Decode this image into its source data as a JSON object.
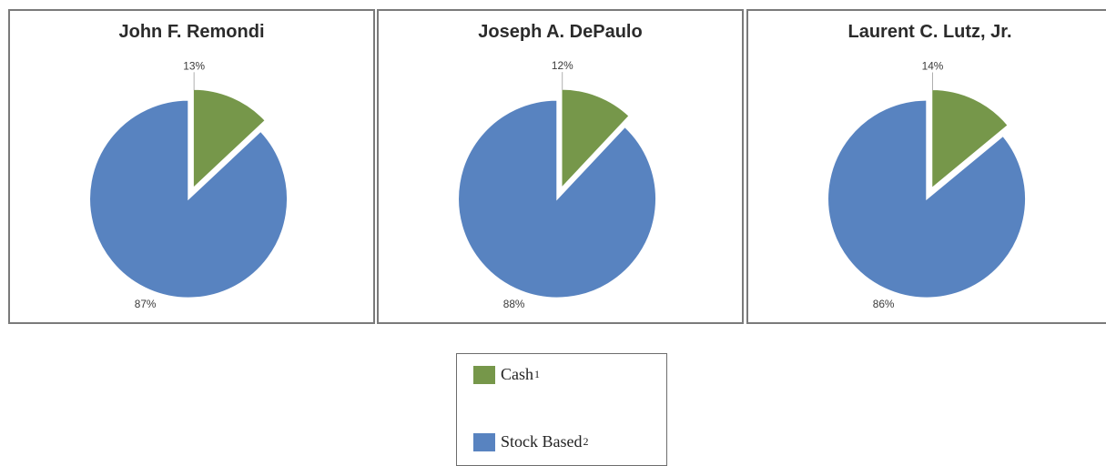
{
  "colors": {
    "cash": "#76974a",
    "stock_based": "#5883c0",
    "slice_stroke": "#ffffff"
  },
  "chart_data": [
    {
      "type": "pie",
      "title": "John F. Remondi",
      "categories": [
        "Cash",
        "Stock Based"
      ],
      "values": [
        13,
        87
      ],
      "labels": [
        "13%",
        "87%"
      ],
      "exploded": "Cash"
    },
    {
      "type": "pie",
      "title": "Joseph A. DePaulo",
      "categories": [
        "Cash",
        "Stock Based"
      ],
      "values": [
        12,
        88
      ],
      "labels": [
        "12%",
        "88%"
      ],
      "exploded": "Cash"
    },
    {
      "type": "pie",
      "title": "Laurent C. Lutz, Jr.",
      "categories": [
        "Cash",
        "Stock Based"
      ],
      "values": [
        14,
        86
      ],
      "labels": [
        "14%",
        "86%"
      ],
      "exploded": "Cash"
    }
  ],
  "legend": {
    "items": [
      {
        "label": "Cash",
        "sup": "1",
        "color_key": "cash"
      },
      {
        "label": "Stock Based",
        "sup": "2",
        "color_key": "stock_based"
      }
    ]
  }
}
